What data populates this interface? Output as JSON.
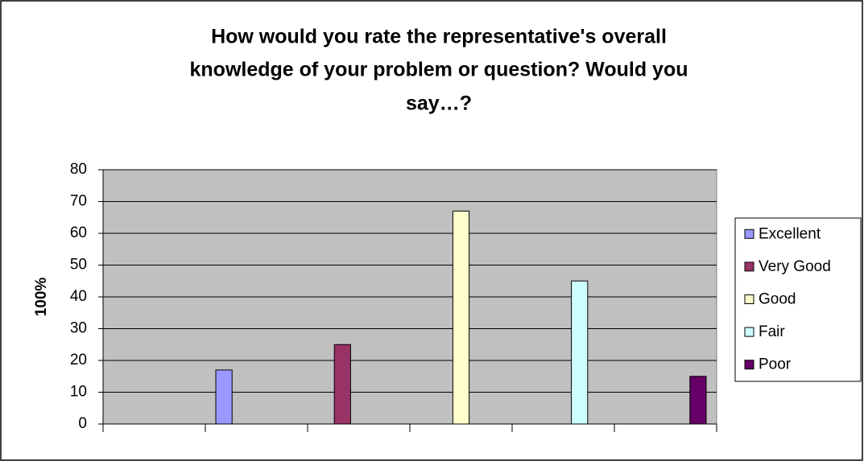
{
  "chart_data": {
    "type": "bar",
    "title": [
      "How would you rate the representative's overall",
      "knowledge of your problem or question? Would you",
      "say…?"
    ],
    "y_label": "100%",
    "categories": [
      null,
      null,
      null,
      null,
      null,
      null
    ],
    "series": [
      {
        "name": "Excellent",
        "color": "#9999ff",
        "values": [
          null,
          17,
          null,
          null,
          null,
          null
        ]
      },
      {
        "name": "Very Good",
        "color": "#993366",
        "values": [
          null,
          null,
          25,
          null,
          null,
          null
        ]
      },
      {
        "name": "Good",
        "color": "#ffffcc",
        "values": [
          null,
          null,
          null,
          67,
          null,
          null
        ]
      },
      {
        "name": "Fair",
        "color": "#ccffff",
        "values": [
          null,
          null,
          null,
          null,
          45,
          null
        ]
      },
      {
        "name": "Poor",
        "color": "#660066",
        "values": [
          null,
          null,
          null,
          null,
          null,
          15
        ]
      }
    ],
    "ylim": [
      0,
      80
    ],
    "yticks": [
      0,
      10,
      20,
      30,
      40,
      50,
      60,
      70,
      80
    ],
    "grid": true,
    "legend": "right",
    "plot_background": "#c0c0c0"
  }
}
